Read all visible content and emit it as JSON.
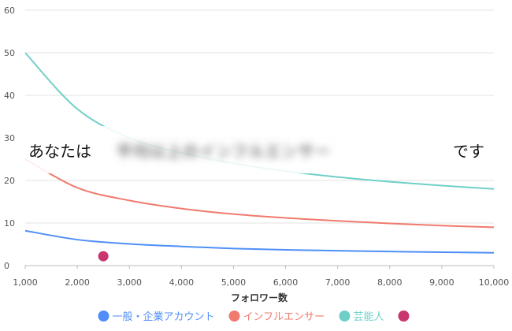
{
  "chart_data": {
    "type": "line",
    "xlabel": "フォロワー数",
    "ylabel": "",
    "xlim": [
      1000,
      10000
    ],
    "ylim": [
      0,
      60
    ],
    "x_ticks": [
      "1,000",
      "2,000",
      "3,000",
      "4,000",
      "5,000",
      "6,000",
      "7,000",
      "8,000",
      "9,000",
      "10,000"
    ],
    "y_ticks": [
      "0",
      "10",
      "20",
      "30",
      "40",
      "50",
      "60"
    ],
    "grid": true,
    "legend_position": "bottom",
    "x": [
      1000,
      2000,
      3000,
      4000,
      5000,
      6000,
      7000,
      8000,
      9000,
      10000
    ],
    "series": [
      {
        "name": "一般・企業アカウント",
        "color": "#4f8ff7",
        "values": [
          8.2,
          6.1,
          5.1,
          4.5,
          4.0,
          3.7,
          3.5,
          3.3,
          3.15,
          3.0
        ]
      },
      {
        "name": "インフルエンサー",
        "color": "#f07a6e",
        "values": [
          25.0,
          18.3,
          15.3,
          13.4,
          12.1,
          11.2,
          10.5,
          9.9,
          9.4,
          9.0
        ]
      },
      {
        "name": "芸能人",
        "color": "#6fcfc8",
        "values": [
          50.0,
          36.8,
          30.0,
          26.5,
          24.0,
          22.2,
          20.8,
          19.7,
          18.8,
          18.0
        ]
      }
    ],
    "marker": {
      "name": "",
      "color": "#c9356d",
      "x": 2500,
      "y": 2.2
    },
    "message": {
      "left": "あなたは",
      "hidden": "平均以上のインフルエンサー",
      "right": "です"
    }
  }
}
